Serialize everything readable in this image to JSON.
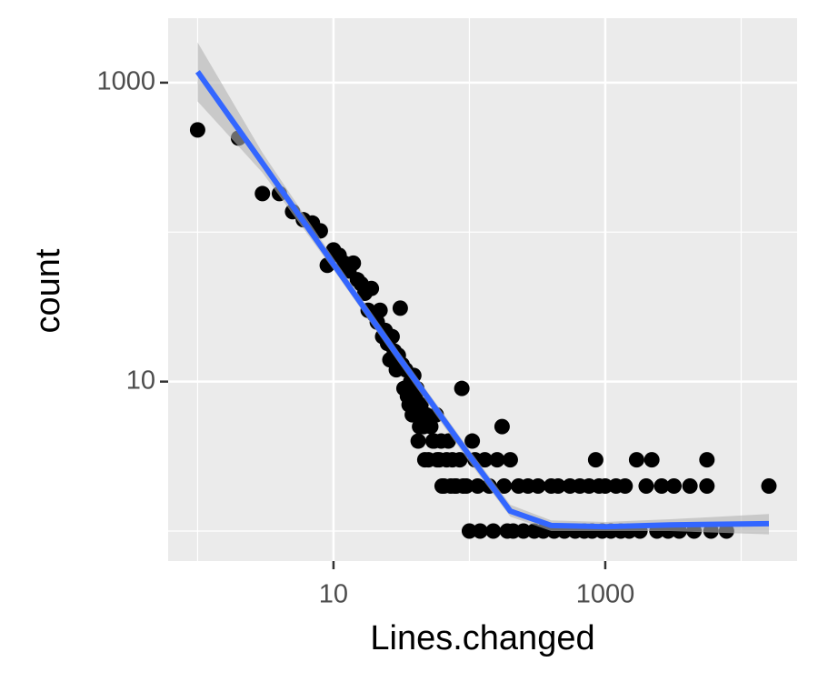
{
  "chart_data": {
    "type": "scatter",
    "xlabel": "Lines.changed",
    "ylabel": "count",
    "x": [
      1,
      2,
      3,
      4,
      5,
      6,
      7,
      8,
      9,
      10,
      11,
      12,
      13,
      14,
      15,
      16,
      17,
      18,
      19,
      20,
      21,
      22,
      23,
      24,
      25,
      26,
      27,
      28,
      29,
      30,
      31,
      32,
      33,
      34,
      35,
      36,
      37,
      38,
      39,
      40,
      41,
      42,
      43,
      44,
      45,
      46,
      47,
      48,
      50,
      52,
      54,
      55,
      57,
      58,
      60,
      62,
      63,
      65,
      68,
      70,
      73,
      75,
      78,
      80,
      85,
      88,
      90,
      95,
      100,
      105,
      110,
      115,
      120,
      130,
      140,
      150,
      160,
      174,
      180,
      190,
      200,
      210,
      230,
      250,
      270,
      300,
      320,
      350,
      400,
      420,
      450,
      500,
      550,
      600,
      650,
      700,
      760,
      800,
      850,
      900,
      950,
      1000,
      1100,
      1200,
      1300,
      1400,
      1500,
      1700,
      1800,
      2000,
      2200,
      2400,
      2600,
      2900,
      3200,
      3500,
      4200,
      4500,
      5600,
      5600,
      6000,
      7800,
      16000
    ],
    "values": [
      483,
      426,
      181,
      181,
      137,
      121,
      115,
      102,
      60,
      76,
      70,
      62,
      55,
      62,
      48,
      45,
      39,
      30,
      42,
      28,
      25,
      30,
      20,
      22,
      18,
      14,
      20,
      16,
      12,
      15,
      31,
      13,
      9,
      12,
      8,
      7,
      10,
      6,
      11,
      8,
      9,
      4,
      5,
      7,
      6,
      5,
      3,
      6,
      3,
      5,
      4,
      4,
      6,
      3,
      3,
      4,
      2,
      2,
      3,
      4,
      2,
      3,
      2,
      2,
      3,
      9,
      2,
      2,
      1,
      4,
      3,
      2,
      1,
      3,
      2,
      1,
      3,
      5,
      2,
      1,
      3,
      1,
      2,
      1,
      2,
      1,
      2,
      1,
      2,
      1,
      2,
      1,
      2,
      1,
      2,
      1,
      2,
      1,
      3,
      2,
      1,
      2,
      1,
      2,
      1,
      2,
      1,
      3,
      1,
      2,
      3,
      1,
      2,
      1,
      2,
      1,
      2,
      1,
      3,
      2,
      1,
      1,
      2
    ],
    "color": "#000000",
    "smooth": {
      "x": [
        1,
        3,
        10,
        30,
        100,
        200,
        400,
        1000,
        3000,
        16000
      ],
      "values": [
        1183,
        290,
        61,
        14.7,
        3.2,
        1.36,
        1.09,
        1.07,
        1.1,
        1.12
      ],
      "lower": [
        750,
        250,
        56,
        13.5,
        2.9,
        1.25,
        1.0,
        1.0,
        1.0,
        0.95
      ],
      "upper": [
        1860,
        340,
        67,
        16,
        3.5,
        1.5,
        1.18,
        1.15,
        1.2,
        1.3
      ],
      "color": "#3366ff",
      "fill": "#b3b3b3"
    },
    "log_x": true,
    "log_y": true,
    "grid": true,
    "xlim": [
      0.607,
      25800
    ],
    "ylim": [
      0.63,
      2700
    ],
    "xticks": [
      10,
      1000
    ],
    "yticks": [
      10,
      1000
    ],
    "x_minor_ticks": [
      1,
      100,
      10000
    ],
    "y_minor_ticks": [
      1,
      100
    ]
  }
}
